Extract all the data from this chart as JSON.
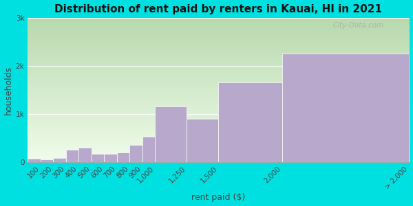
{
  "title": "Distribution of rent paid by renters in Kauai, HI in 2021",
  "xlabel": "rent paid ($)",
  "ylabel": "households",
  "bar_color": "#b8a8cc",
  "bar_edge_color": "#ffffff",
  "outer_bg": "#00e0e0",
  "plot_bg_colors": [
    "#c8dfc0",
    "#eef8ee"
  ],
  "ylim": [
    0,
    3000
  ],
  "yticks": [
    0,
    1000,
    2000,
    3000
  ],
  "ytick_labels": [
    "0",
    "1k",
    "2k",
    "3k"
  ],
  "title_fontsize": 11,
  "axis_label_fontsize": 9,
  "tick_fontsize": 7.5,
  "watermark": "City-Data.com",
  "bin_edges": [
    0,
    100,
    200,
    300,
    400,
    500,
    600,
    700,
    800,
    900,
    1000,
    1250,
    1500,
    2000,
    3000
  ],
  "bin_labels": [
    "100",
    "200",
    "300",
    "400",
    "500",
    "600",
    "700",
    "800",
    "900",
    "1,000",
    "1,250",
    "1,500",
    "2,000",
    "> 2,000"
  ],
  "values": [
    75,
    60,
    90,
    250,
    305,
    175,
    170,
    200,
    355,
    530,
    1150,
    900,
    1650,
    2250
  ]
}
